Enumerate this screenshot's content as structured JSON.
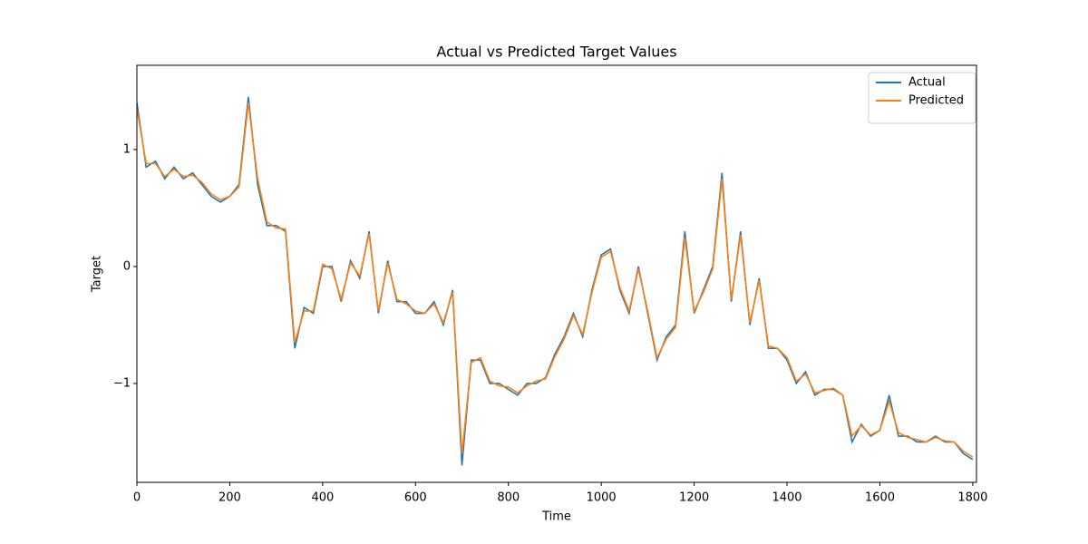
{
  "chart_data": {
    "type": "line",
    "title": "Actual vs Predicted Target Values",
    "x_label": "Time",
    "y_label": "Target",
    "x": [
      0,
      20,
      40,
      60,
      80,
      100,
      120,
      140,
      160,
      180,
      200,
      220,
      240,
      260,
      280,
      300,
      320,
      340,
      360,
      380,
      400,
      420,
      440,
      460,
      480,
      500,
      520,
      540,
      560,
      580,
      600,
      620,
      640,
      660,
      680,
      700,
      720,
      740,
      760,
      780,
      800,
      820,
      840,
      860,
      880,
      900,
      920,
      940,
      960,
      980,
      1000,
      1020,
      1040,
      1060,
      1080,
      1100,
      1120,
      1140,
      1160,
      1180,
      1200,
      1220,
      1240,
      1260,
      1280,
      1300,
      1320,
      1340,
      1360,
      1380,
      1400,
      1420,
      1440,
      1460,
      1480,
      1500,
      1520,
      1540,
      1560,
      1580,
      1600,
      1620,
      1640,
      1660,
      1680,
      1700,
      1720,
      1740,
      1760,
      1780,
      1800
    ],
    "series": [
      {
        "name": "Actual",
        "color": "#1f77b4",
        "values": [
          1.4,
          0.85,
          0.9,
          0.75,
          0.85,
          0.75,
          0.8,
          0.7,
          0.6,
          0.55,
          0.6,
          0.7,
          1.45,
          0.7,
          0.35,
          0.35,
          0.3,
          -0.7,
          -0.35,
          -0.4,
          0.0,
          0.0,
          -0.3,
          0.05,
          -0.1,
          0.3,
          -0.4,
          0.05,
          -0.3,
          -0.3,
          -0.4,
          -0.4,
          -0.3,
          -0.5,
          -0.2,
          -1.7,
          -0.8,
          -0.8,
          -1.0,
          -1.0,
          -1.05,
          -1.1,
          -1.0,
          -1.0,
          -0.95,
          -0.75,
          -0.6,
          -0.4,
          -0.6,
          -0.2,
          0.1,
          0.15,
          -0.2,
          -0.4,
          0.0,
          -0.4,
          -0.8,
          -0.6,
          -0.5,
          0.3,
          -0.4,
          -0.2,
          0.0,
          0.8,
          -0.3,
          0.3,
          -0.5,
          -0.1,
          -0.7,
          -0.7,
          -0.8,
          -1.0,
          -0.9,
          -1.1,
          -1.05,
          -1.05,
          -1.1,
          -1.5,
          -1.35,
          -1.45,
          -1.4,
          -1.1,
          -1.45,
          -1.45,
          -1.5,
          -1.5,
          -1.45,
          -1.5,
          -1.5,
          -1.6,
          -1.65
        ]
      },
      {
        "name": "Predicted",
        "color": "#ff7f0e",
        "values": [
          1.35,
          0.88,
          0.88,
          0.77,
          0.83,
          0.77,
          0.78,
          0.72,
          0.62,
          0.57,
          0.6,
          0.68,
          1.4,
          0.75,
          0.38,
          0.33,
          0.32,
          -0.65,
          -0.38,
          -0.38,
          0.02,
          -0.02,
          -0.28,
          0.03,
          -0.08,
          0.28,
          -0.38,
          0.03,
          -0.28,
          -0.32,
          -0.38,
          -0.4,
          -0.32,
          -0.48,
          -0.22,
          -1.6,
          -0.82,
          -0.78,
          -0.98,
          -1.02,
          -1.03,
          -1.08,
          -1.02,
          -0.98,
          -0.96,
          -0.77,
          -0.62,
          -0.42,
          -0.58,
          -0.22,
          0.08,
          0.13,
          -0.18,
          -0.38,
          -0.02,
          -0.38,
          -0.78,
          -0.62,
          -0.52,
          0.25,
          -0.38,
          -0.22,
          -0.02,
          0.75,
          -0.28,
          0.27,
          -0.48,
          -0.12,
          -0.68,
          -0.7,
          -0.78,
          -0.98,
          -0.92,
          -1.08,
          -1.06,
          -1.04,
          -1.1,
          -1.45,
          -1.36,
          -1.44,
          -1.4,
          -1.15,
          -1.42,
          -1.46,
          -1.48,
          -1.5,
          -1.46,
          -1.49,
          -1.5,
          -1.58,
          -1.63
        ]
      }
    ],
    "xlim": [
      0,
      1808
    ],
    "ylim": [
      -1.845,
      1.72
    ],
    "xticks": [
      0,
      200,
      400,
      600,
      800,
      1000,
      1200,
      1400,
      1600,
      1800
    ],
    "yticks": [
      {
        "value": -1,
        "label": "−1"
      },
      0,
      1
    ],
    "legend": "upper right"
  }
}
